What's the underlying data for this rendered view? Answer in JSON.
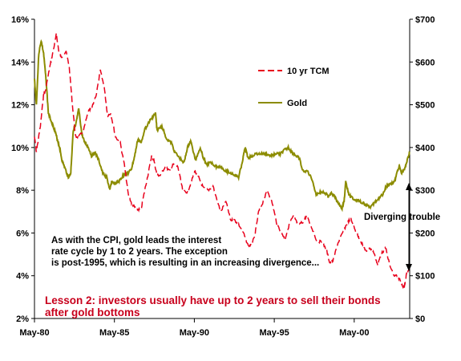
{
  "chart_data": {
    "type": "line",
    "colors": {
      "tcm": "#e8001c",
      "gold": "#8c8c00",
      "text": "#000000",
      "lesson": "#c8001c"
    },
    "x_ticks": [
      "May-80",
      "May-85",
      "May-90",
      "May-95",
      "May-00"
    ],
    "y_left_ticks": [
      "2%",
      "4%",
      "6%",
      "8%",
      "10%",
      "12%",
      "14%",
      "16%"
    ],
    "y_right_ticks": [
      "$0",
      "$100",
      "$200",
      "$300",
      "$400",
      "$500",
      "$600",
      "$700"
    ],
    "ylim_left": [
      2,
      16
    ],
    "ylim_right": [
      0,
      700
    ],
    "xlim": [
      1980.33,
      2003.8
    ],
    "grid": false,
    "series": [
      {
        "name": "10 yr TCM",
        "axis": "left",
        "style": "dashed",
        "points": [
          [
            1980.33,
            10.5
          ],
          [
            1980.45,
            9.8
          ],
          [
            1980.7,
            11.0
          ],
          [
            1980.9,
            12.5
          ],
          [
            1981.0,
            12.6
          ],
          [
            1981.3,
            13.8
          ],
          [
            1981.5,
            14.5
          ],
          [
            1981.7,
            15.3
          ],
          [
            1981.85,
            14.5
          ],
          [
            1982.0,
            14.2
          ],
          [
            1982.3,
            14.5
          ],
          [
            1982.5,
            13.8
          ],
          [
            1982.7,
            12.0
          ],
          [
            1982.9,
            10.5
          ],
          [
            1983.1,
            10.5
          ],
          [
            1983.4,
            10.8
          ],
          [
            1983.7,
            11.7
          ],
          [
            1983.9,
            11.8
          ],
          [
            1984.2,
            12.5
          ],
          [
            1984.45,
            13.6
          ],
          [
            1984.7,
            12.8
          ],
          [
            1984.9,
            11.5
          ],
          [
            1985.1,
            11.6
          ],
          [
            1985.4,
            10.5
          ],
          [
            1985.7,
            10.2
          ],
          [
            1985.95,
            9.2
          ],
          [
            1986.2,
            7.8
          ],
          [
            1986.4,
            7.4
          ],
          [
            1986.6,
            7.2
          ],
          [
            1986.8,
            7.1
          ],
          [
            1987.0,
            7.1
          ],
          [
            1987.2,
            7.9
          ],
          [
            1987.45,
            8.8
          ],
          [
            1987.65,
            9.6
          ],
          [
            1987.8,
            9.4
          ],
          [
            1988.0,
            8.7
          ],
          [
            1988.2,
            8.7
          ],
          [
            1988.5,
            9.1
          ],
          [
            1988.8,
            8.9
          ],
          [
            1989.0,
            9.2
          ],
          [
            1989.3,
            9.1
          ],
          [
            1989.6,
            8.0
          ],
          [
            1989.9,
            7.9
          ],
          [
            1990.1,
            8.3
          ],
          [
            1990.35,
            8.9
          ],
          [
            1990.6,
            8.6
          ],
          [
            1990.9,
            8.1
          ],
          [
            1991.2,
            8.0
          ],
          [
            1991.5,
            8.2
          ],
          [
            1991.8,
            7.4
          ],
          [
            1992.0,
            7.0
          ],
          [
            1992.3,
            7.5
          ],
          [
            1992.6,
            6.6
          ],
          [
            1992.85,
            6.6
          ],
          [
            1993.1,
            6.4
          ],
          [
            1993.4,
            6.0
          ],
          [
            1993.7,
            5.4
          ],
          [
            1993.85,
            5.4
          ],
          [
            1994.1,
            5.8
          ],
          [
            1994.35,
            7.0
          ],
          [
            1994.6,
            7.4
          ],
          [
            1994.9,
            8.0
          ],
          [
            1995.2,
            7.4
          ],
          [
            1995.5,
            6.4
          ],
          [
            1995.8,
            6.0
          ],
          [
            1996.0,
            5.7
          ],
          [
            1996.3,
            6.5
          ],
          [
            1996.55,
            6.8
          ],
          [
            1996.8,
            6.4
          ],
          [
            1997.1,
            6.5
          ],
          [
            1997.35,
            6.8
          ],
          [
            1997.7,
            6.2
          ],
          [
            1998.0,
            5.6
          ],
          [
            1998.3,
            5.6
          ],
          [
            1998.6,
            5.2
          ],
          [
            1998.8,
            4.6
          ],
          [
            1999.0,
            4.7
          ],
          [
            1999.3,
            5.5
          ],
          [
            1999.6,
            6.0
          ],
          [
            1999.85,
            6.4
          ],
          [
            2000.1,
            6.7
          ],
          [
            2000.35,
            6.2
          ],
          [
            2000.6,
            5.8
          ],
          [
            2000.9,
            5.4
          ],
          [
            2001.1,
            5.1
          ],
          [
            2001.3,
            5.3
          ],
          [
            2001.55,
            5.1
          ],
          [
            2001.8,
            4.5
          ],
          [
            2002.0,
            5.0
          ],
          [
            2002.3,
            5.3
          ],
          [
            2002.55,
            4.5
          ],
          [
            2002.8,
            4.0
          ],
          [
            2003.0,
            4.0
          ],
          [
            2003.2,
            3.8
          ],
          [
            2003.45,
            3.4
          ],
          [
            2003.6,
            4.1
          ],
          [
            2003.8,
            4.3
          ]
        ]
      },
      {
        "name": "Gold",
        "axis": "right",
        "style": "solid",
        "points": [
          [
            1980.33,
            560
          ],
          [
            1980.45,
            500
          ],
          [
            1980.6,
            620
          ],
          [
            1980.75,
            650
          ],
          [
            1980.9,
            620
          ],
          [
            1981.05,
            560
          ],
          [
            1981.2,
            480
          ],
          [
            1981.4,
            460
          ],
          [
            1981.6,
            440
          ],
          [
            1981.75,
            420
          ],
          [
            1981.9,
            400
          ],
          [
            1982.05,
            370
          ],
          [
            1982.25,
            350
          ],
          [
            1982.45,
            330
          ],
          [
            1982.6,
            340
          ],
          [
            1982.75,
            440
          ],
          [
            1982.9,
            450
          ],
          [
            1983.0,
            470
          ],
          [
            1983.1,
            490
          ],
          [
            1983.3,
            430
          ],
          [
            1983.5,
            410
          ],
          [
            1983.7,
            400
          ],
          [
            1983.9,
            380
          ],
          [
            1984.1,
            390
          ],
          [
            1984.35,
            370
          ],
          [
            1984.6,
            340
          ],
          [
            1984.85,
            330
          ],
          [
            1985.05,
            300
          ],
          [
            1985.15,
            320
          ],
          [
            1985.4,
            315
          ],
          [
            1985.6,
            320
          ],
          [
            1985.8,
            330
          ],
          [
            1986.0,
            340
          ],
          [
            1986.2,
            340
          ],
          [
            1986.4,
            350
          ],
          [
            1986.6,
            380
          ],
          [
            1986.8,
            420
          ],
          [
            1987.0,
            410
          ],
          [
            1987.2,
            440
          ],
          [
            1987.5,
            460
          ],
          [
            1987.7,
            470
          ],
          [
            1987.9,
            480
          ],
          [
            1988.0,
            440
          ],
          [
            1988.3,
            450
          ],
          [
            1988.6,
            420
          ],
          [
            1988.9,
            410
          ],
          [
            1989.1,
            390
          ],
          [
            1989.4,
            375
          ],
          [
            1989.7,
            365
          ],
          [
            1989.9,
            400
          ],
          [
            1990.1,
            415
          ],
          [
            1990.4,
            370
          ],
          [
            1990.7,
            400
          ],
          [
            1990.9,
            375
          ],
          [
            1991.1,
            360
          ],
          [
            1991.4,
            365
          ],
          [
            1991.7,
            355
          ],
          [
            1992.0,
            355
          ],
          [
            1992.3,
            345
          ],
          [
            1992.6,
            340
          ],
          [
            1992.9,
            335
          ],
          [
            1993.1,
            330
          ],
          [
            1993.35,
            370
          ],
          [
            1993.5,
            400
          ],
          [
            1993.7,
            375
          ],
          [
            1993.9,
            380
          ],
          [
            1994.2,
            385
          ],
          [
            1994.5,
            385
          ],
          [
            1994.8,
            385
          ],
          [
            1995.1,
            380
          ],
          [
            1995.4,
            385
          ],
          [
            1995.7,
            385
          ],
          [
            1996.0,
            395
          ],
          [
            1996.2,
            400
          ],
          [
            1996.4,
            390
          ],
          [
            1996.7,
            380
          ],
          [
            1996.9,
            375
          ],
          [
            1997.1,
            345
          ],
          [
            1997.4,
            345
          ],
          [
            1997.7,
            325
          ],
          [
            1997.95,
            290
          ],
          [
            1998.2,
            295
          ],
          [
            1998.5,
            295
          ],
          [
            1998.7,
            285
          ],
          [
            1998.9,
            295
          ],
          [
            1999.1,
            285
          ],
          [
            1999.35,
            270
          ],
          [
            1999.55,
            255
          ],
          [
            1999.7,
            275
          ],
          [
            1999.8,
            320
          ],
          [
            1999.95,
            295
          ],
          [
            2000.1,
            285
          ],
          [
            2000.3,
            280
          ],
          [
            2000.6,
            275
          ],
          [
            2000.9,
            270
          ],
          [
            2001.1,
            265
          ],
          [
            2001.35,
            260
          ],
          [
            2001.6,
            272
          ],
          [
            2001.85,
            280
          ],
          [
            2002.1,
            290
          ],
          [
            2002.35,
            310
          ],
          [
            2002.6,
            315
          ],
          [
            2002.85,
            320
          ],
          [
            2003.0,
            340
          ],
          [
            2003.15,
            355
          ],
          [
            2003.3,
            340
          ],
          [
            2003.5,
            350
          ],
          [
            2003.65,
            370
          ],
          [
            2003.8,
            390
          ]
        ]
      }
    ],
    "annotations": {
      "diverging": "Diverging trouble",
      "note_lines": [
        "As with the CPI, gold leads the interest",
        "rate cycle by 1 to 2 years.  The exception",
        "is post-1995, which is resulting in an increasing divergence..."
      ],
      "lesson_lines": [
        "Lesson 2: investors usually have up to 2 years to sell their bonds",
        "after gold bottoms"
      ]
    }
  }
}
